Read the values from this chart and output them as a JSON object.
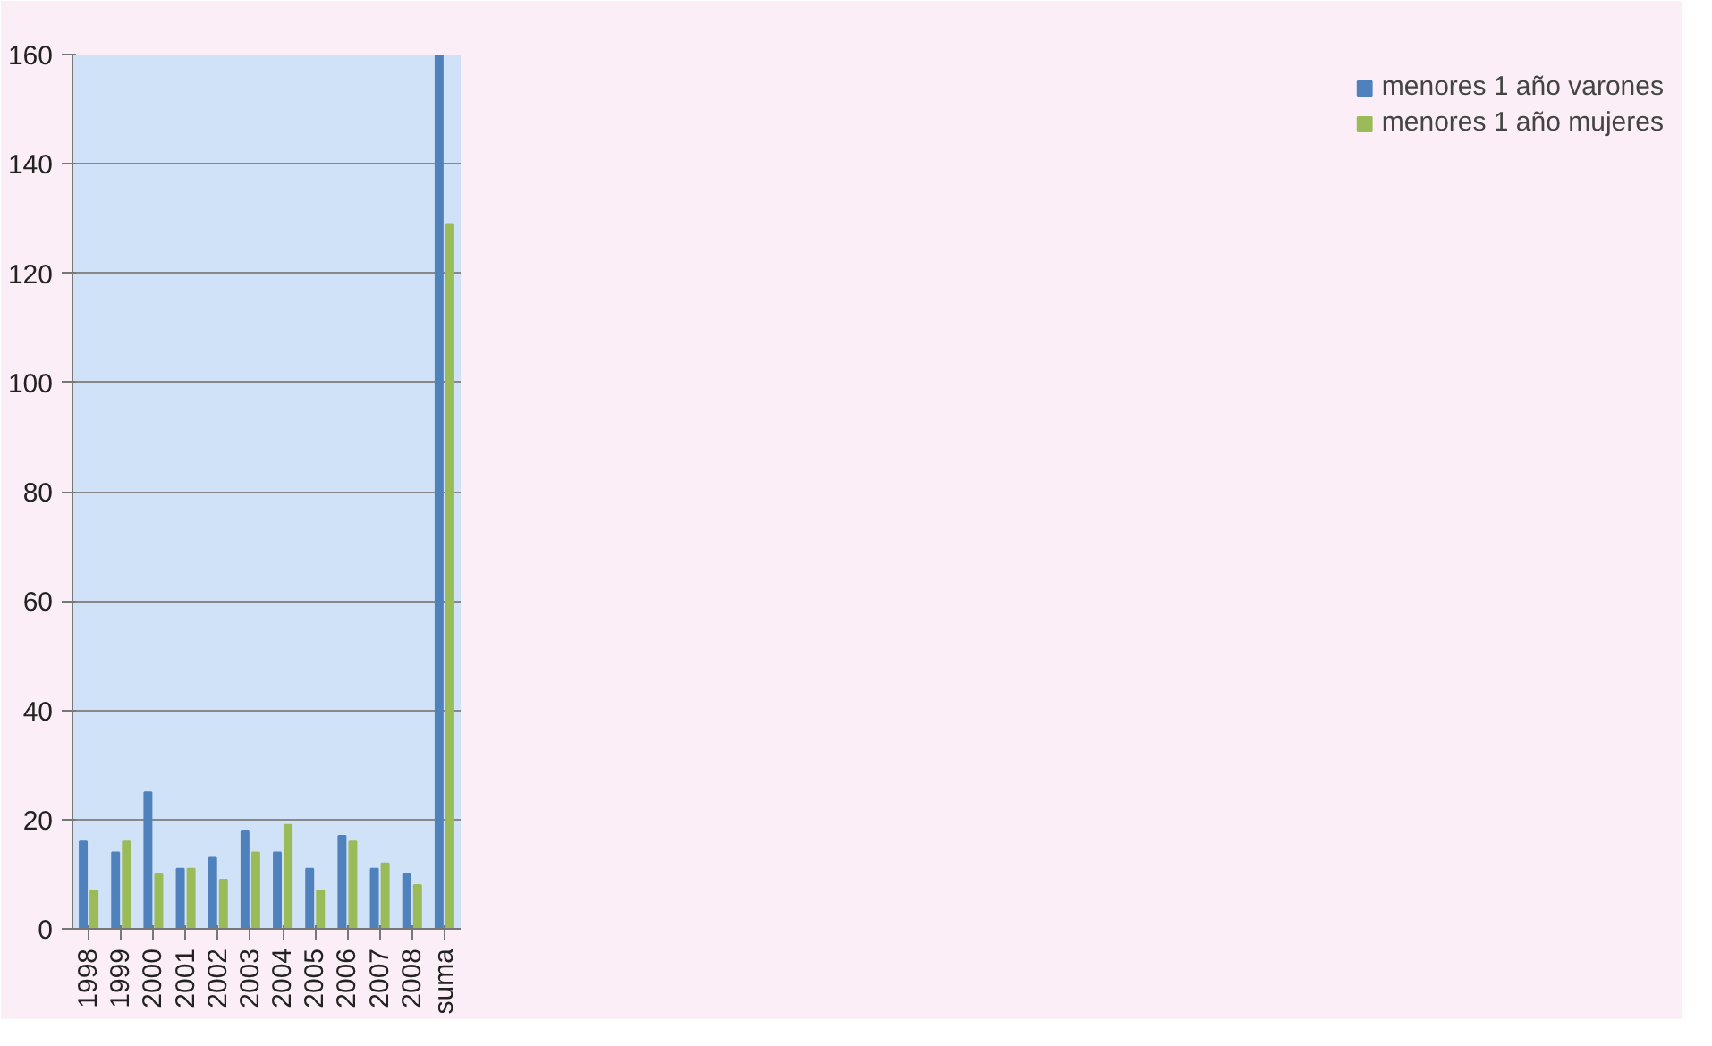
{
  "chart_data": {
    "type": "bar",
    "categories": [
      "1998",
      "1999",
      "2000",
      "2001",
      "2002",
      "2003",
      "2004",
      "2005",
      "2006",
      "2007",
      "2008",
      "suma"
    ],
    "series": [
      {
        "name": "menores 1 año varones",
        "color": "#4f81bd",
        "values": [
          16,
          14,
          25,
          11,
          13,
          18,
          14,
          11,
          17,
          11,
          10,
          160
        ]
      },
      {
        "name": "menores 1 año mujeres",
        "color": "#9bbb59",
        "values": [
          7,
          16,
          10,
          11,
          9,
          14,
          19,
          7,
          16,
          12,
          8,
          129
        ]
      }
    ],
    "ylim": [
      0,
      160
    ],
    "yticks": [
      0,
      20,
      40,
      60,
      80,
      100,
      120,
      140,
      160
    ],
    "grid": "y",
    "legend": "right"
  }
}
